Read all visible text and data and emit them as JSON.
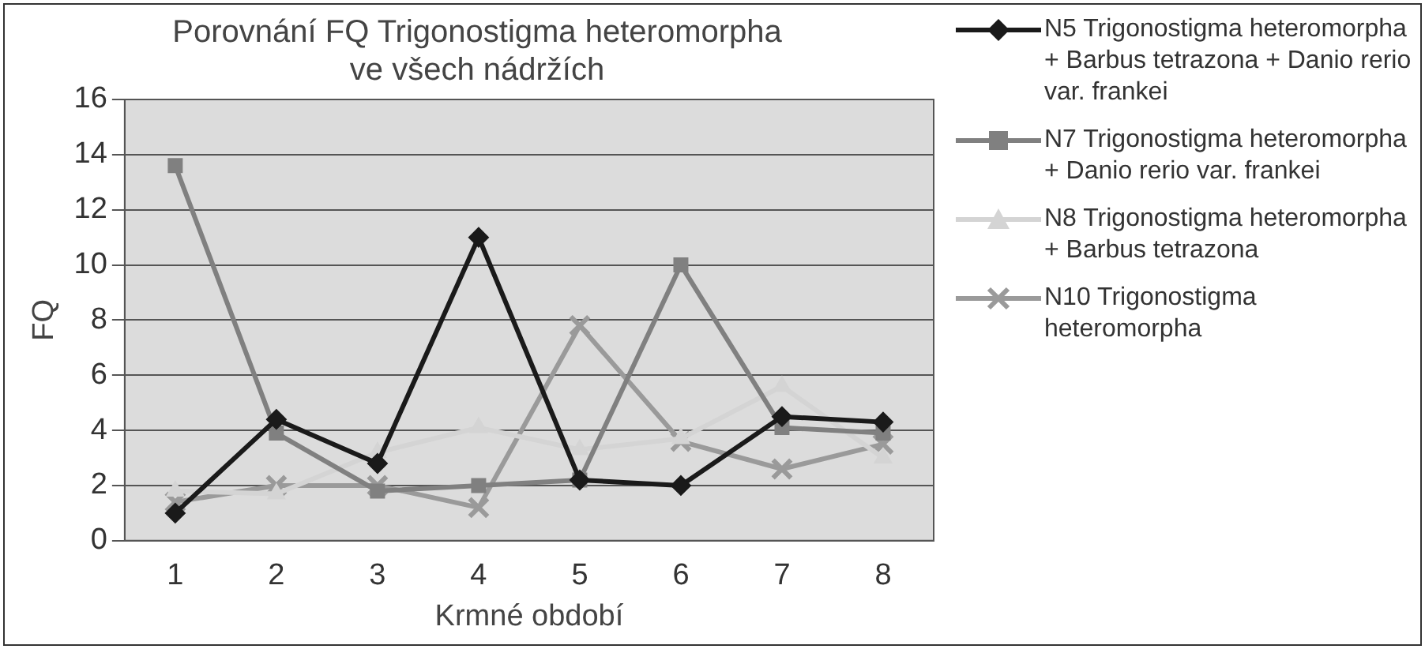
{
  "chart_data": {
    "type": "line",
    "title": "Porovnání FQ Trigonostigma heteromorpha ve všech nádržích",
    "xlabel": "Krmné období",
    "ylabel": "FQ",
    "categories": [
      "1",
      "2",
      "3",
      "4",
      "5",
      "6",
      "7",
      "8"
    ],
    "series": [
      {
        "name": "N5 Trigonostigma heteromorpha + Barbus tetrazona + Danio rerio var. frankei",
        "color": "#1a1a1a",
        "marker": "diamond",
        "values": [
          1.0,
          4.4,
          2.8,
          11.0,
          2.2,
          2.0,
          4.5,
          4.3
        ]
      },
      {
        "name": "N7 Trigonostigma heteromorpha + Danio rerio var. frankei",
        "color": "#808080",
        "marker": "square",
        "values": [
          13.6,
          3.9,
          1.8,
          2.0,
          2.2,
          10.0,
          4.1,
          3.9
        ]
      },
      {
        "name": "N8 Trigonostigma heteromorpha + Barbus tetrazona",
        "color": "#d4d4d4",
        "marker": "triangle",
        "values": [
          1.8,
          1.7,
          3.2,
          4.1,
          3.3,
          3.7,
          5.6,
          3.0
        ]
      },
      {
        "name": "N10 Trigonostigma heteromorpha",
        "color": "#9a9a9a",
        "marker": "cross",
        "values": [
          1.4,
          2.0,
          2.0,
          1.2,
          7.8,
          3.6,
          2.6,
          3.5
        ]
      }
    ],
    "ylim": [
      0,
      16
    ],
    "yticks": [
      0,
      2,
      4,
      6,
      8,
      10,
      12,
      14,
      16
    ],
    "grid": "y",
    "legend": "right"
  }
}
